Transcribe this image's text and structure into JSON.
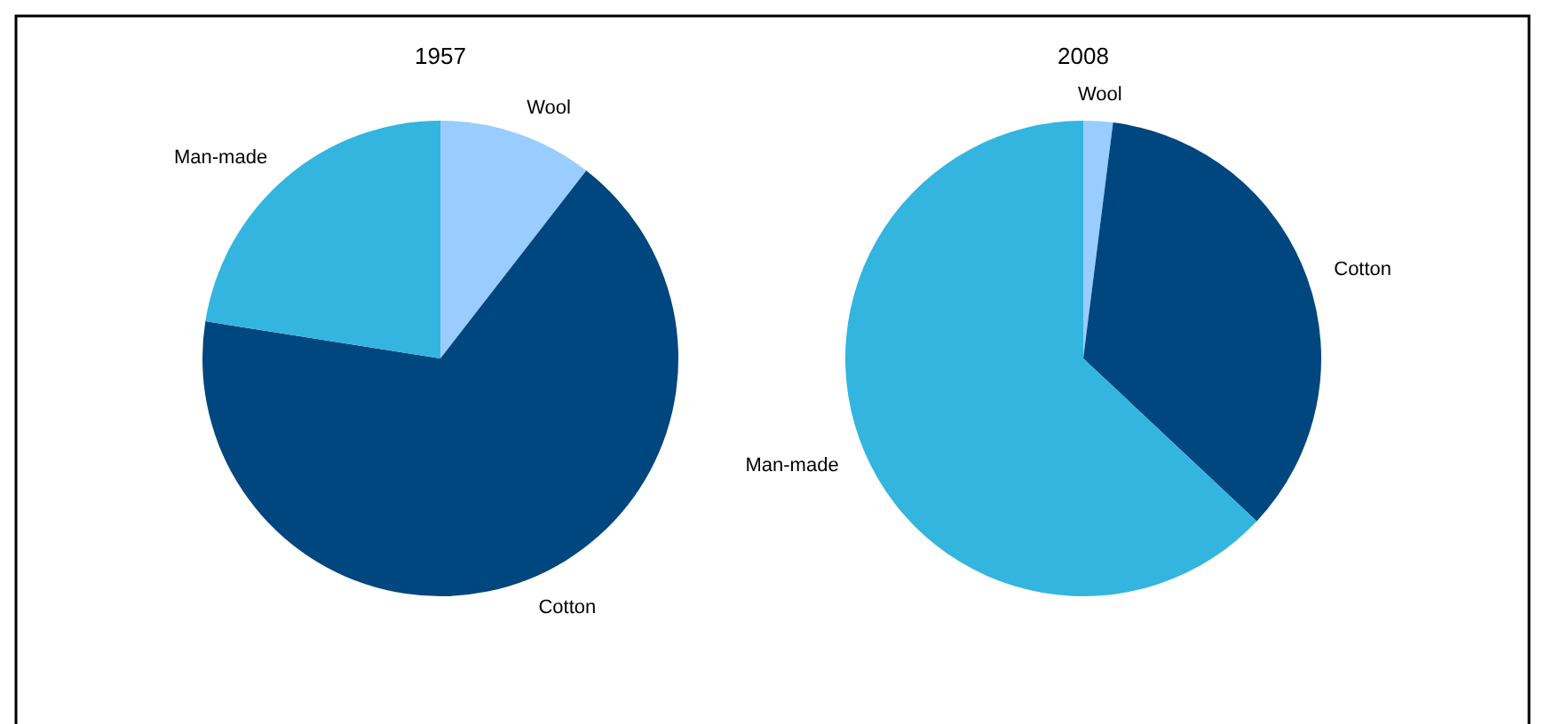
{
  "chart_data": [
    {
      "type": "pie",
      "title": "1957",
      "categories": [
        "Wool",
        "Cotton",
        "Man-made"
      ],
      "values": [
        10.5,
        67,
        22.5
      ],
      "colors": [
        "#99ccff",
        "#00467f",
        "#33b5e0"
      ]
    },
    {
      "type": "pie",
      "title": "2008",
      "categories": [
        "Wool",
        "Cotton",
        "Man-made"
      ],
      "values": [
        2,
        35,
        63
      ],
      "colors": [
        "#99ccff",
        "#00467f",
        "#33b5e0"
      ]
    }
  ]
}
